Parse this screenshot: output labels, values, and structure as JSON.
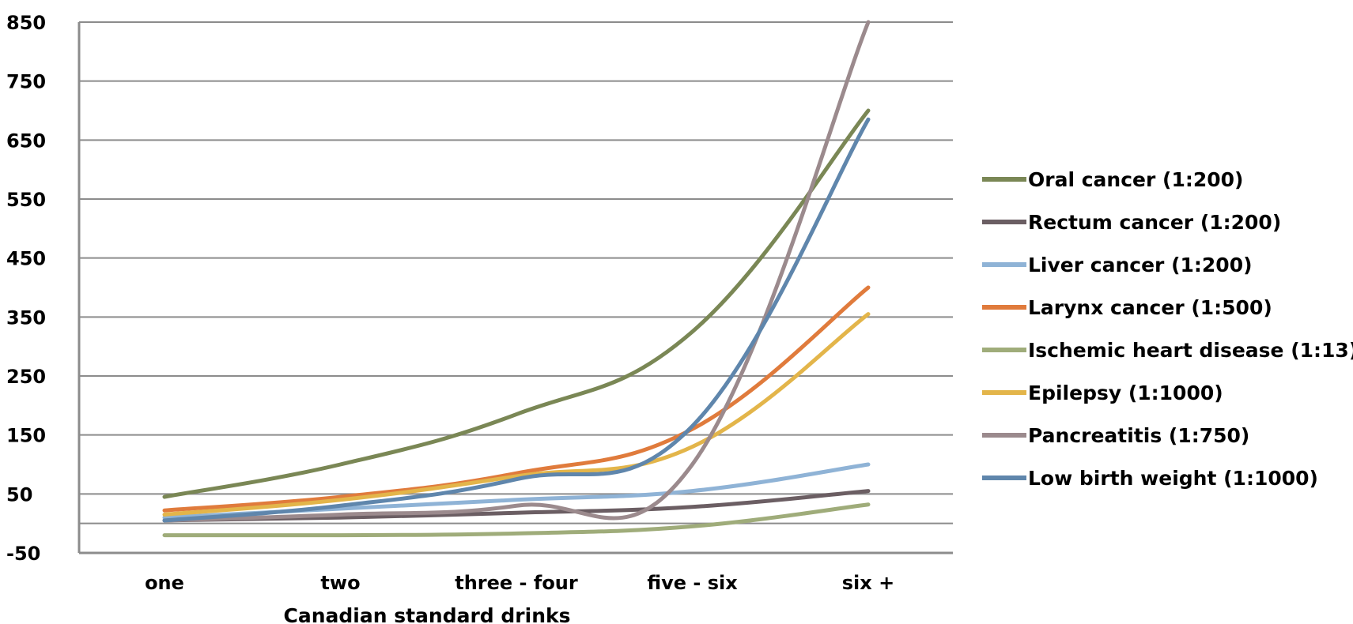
{
  "chart_data": {
    "type": "line",
    "title": "",
    "xlabel": "Canadian standard drinks",
    "ylabel": "",
    "categories": [
      "one",
      "two",
      "three - four",
      "five - six",
      "six +"
    ],
    "yticks": [
      "850",
      "750",
      "650",
      "550",
      "450",
      "350",
      "250",
      "150",
      "50",
      "-50"
    ],
    "ylim": [
      -50,
      850
    ],
    "grid": true,
    "legend": "right",
    "series": [
      {
        "name": "Oral cancer (1:200)",
        "color": "#7a8755",
        "values": [
          45,
          100,
          185,
          325,
          700
        ]
      },
      {
        "name": "Rectum cancer (1:200)",
        "color": "#6b5e63",
        "values": [
          5,
          10,
          18,
          28,
          55
        ]
      },
      {
        "name": "Liver cancer (1:200)",
        "color": "#8fb3d6",
        "values": [
          10,
          25,
          40,
          55,
          100
        ]
      },
      {
        "name": "Larynx cancer (1:500)",
        "color": "#e07b3c",
        "values": [
          22,
          45,
          85,
          160,
          400
        ]
      },
      {
        "name": "Ischemic heart disease (1:13)",
        "color": "#9fac7a",
        "values": [
          -20,
          -20,
          -17,
          -5,
          32
        ]
      },
      {
        "name": "Epilepsy (1:1000)",
        "color": "#e3b54a",
        "values": [
          15,
          40,
          80,
          130,
          355
        ]
      },
      {
        "name": "Pancreatitis (1:750)",
        "color": "#9b8a8d",
        "values": [
          5,
          15,
          30,
          100,
          850
        ]
      },
      {
        "name": "Low birth weight (1:1000)",
        "color": "#5f86ac",
        "values": [
          5,
          30,
          75,
          165,
          685
        ]
      }
    ]
  }
}
